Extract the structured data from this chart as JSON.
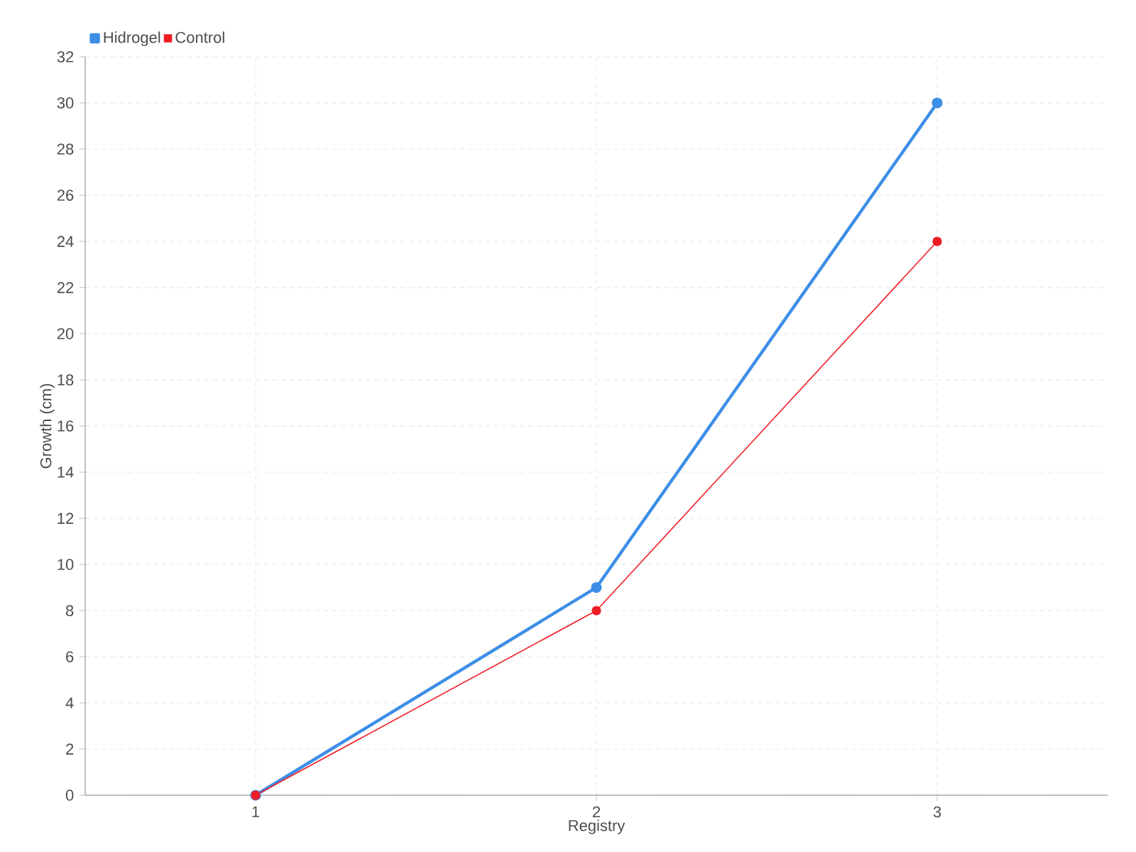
{
  "chart_data": {
    "type": "line",
    "xlabel": "Registry",
    "ylabel": "Growth (cm)",
    "categories": [
      "1",
      "2",
      "3"
    ],
    "series": [
      {
        "name": "Hidrogel",
        "color": "#3d8ee6",
        "values": [
          0,
          9,
          30
        ]
      },
      {
        "name": "Control",
        "color": "#ee1c25",
        "values": [
          0,
          8,
          24
        ]
      }
    ],
    "ylim": [
      0,
      32
    ],
    "yticks": [
      0,
      2,
      4,
      6,
      8,
      10,
      12,
      14,
      16,
      18,
      20,
      22,
      24,
      26,
      28,
      30,
      32
    ],
    "grid": true,
    "legend": "top left",
    "marker": "circle"
  }
}
